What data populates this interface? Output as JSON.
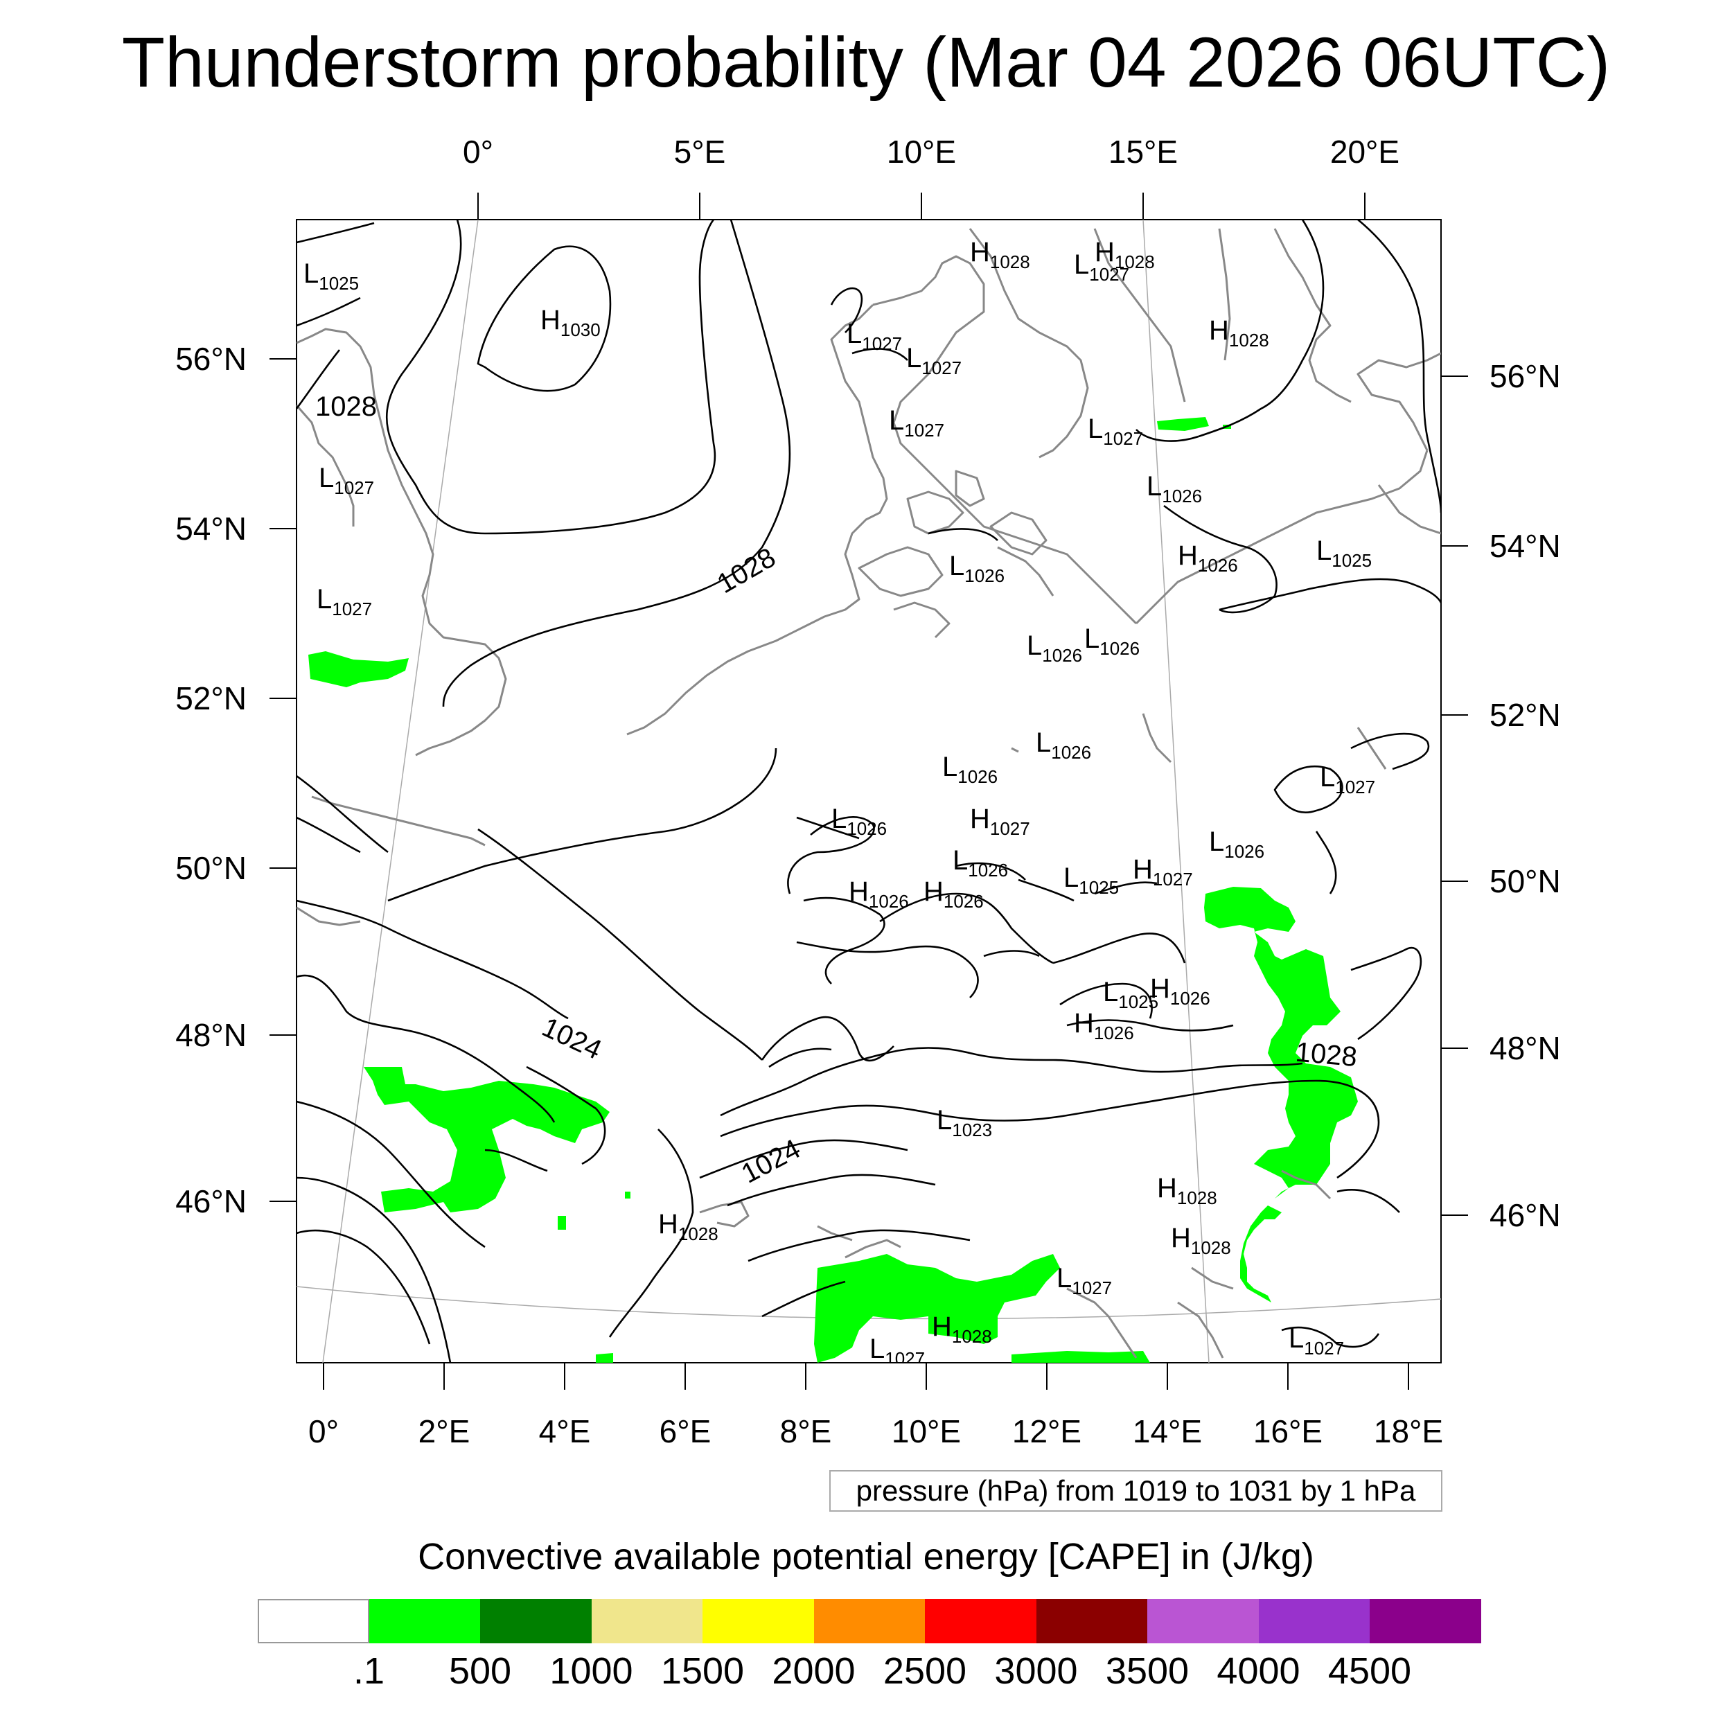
{
  "title": "Thunderstorm probability (Mar 04 2026 06UTC)",
  "map": {
    "lon_labels_top": [
      "0°",
      "5°E",
      "10°E",
      "15°E",
      "20°E"
    ],
    "lon_labels_bottom": [
      "0°",
      "2°E",
      "4°E",
      "6°E",
      "8°E",
      "10°E",
      "12°E",
      "14°E",
      "16°E",
      "18°E"
    ],
    "lat_labels_left": [
      "56°N",
      "54°N",
      "52°N",
      "50°N",
      "48°N",
      "46°N"
    ],
    "lat_labels_right": [
      "56°N",
      "54°N",
      "52°N",
      "50°N",
      "48°N",
      "46°N"
    ],
    "pressure_centers": [
      {
        "letter": "L",
        "value": "1025"
      },
      {
        "letter": "H",
        "value": "1030"
      },
      {
        "letter": "L",
        "value": "1027"
      },
      {
        "letter": "L",
        "value": "1027"
      },
      {
        "letter": "L",
        "value": "1027"
      },
      {
        "letter": "H",
        "value": "1028"
      },
      {
        "letter": "L",
        "value": "1027"
      },
      {
        "letter": "H",
        "value": "1028"
      },
      {
        "letter": "H",
        "value": "1028"
      },
      {
        "letter": "L",
        "value": "1027"
      },
      {
        "letter": "L",
        "value": "1027"
      },
      {
        "letter": "L",
        "value": "1027"
      },
      {
        "letter": "L",
        "value": "1026"
      },
      {
        "letter": "L",
        "value": "1025"
      },
      {
        "letter": "H",
        "value": "1026"
      },
      {
        "letter": "L",
        "value": "1026"
      },
      {
        "letter": "L",
        "value": "1026"
      },
      {
        "letter": "L",
        "value": "1026"
      },
      {
        "letter": "L",
        "value": "1026"
      },
      {
        "letter": "L",
        "value": "1026"
      },
      {
        "letter": "L",
        "value": "1027"
      },
      {
        "letter": "L",
        "value": "1026"
      },
      {
        "letter": "H",
        "value": "1027"
      },
      {
        "letter": "L",
        "value": "1026"
      },
      {
        "letter": "L",
        "value": "1026"
      },
      {
        "letter": "H",
        "value": "1026"
      },
      {
        "letter": "H",
        "value": "1026"
      },
      {
        "letter": "L",
        "value": "1025"
      },
      {
        "letter": "H",
        "value": "1027"
      },
      {
        "letter": "H",
        "value": "1026"
      },
      {
        "letter": "H",
        "value": "1026"
      },
      {
        "letter": "L",
        "value": "1025"
      },
      {
        "letter": "L",
        "value": "1023"
      },
      {
        "letter": "H",
        "value": "1028"
      },
      {
        "letter": "H",
        "value": "1028"
      },
      {
        "letter": "H",
        "value": "1028"
      },
      {
        "letter": "L",
        "value": "1027"
      },
      {
        "letter": "H",
        "value": "1028"
      },
      {
        "letter": "L",
        "value": "1027"
      },
      {
        "letter": "L",
        "value": "1027"
      }
    ],
    "contour_labels": [
      "1028",
      "1028",
      "1024",
      "1024",
      "1028"
    ]
  },
  "pressure_info": "pressure (hPa) from 1019 to 1031 by 1 hPa",
  "colorbar": {
    "title": "Convective available potential energy [CAPE] in (J/kg)",
    "colors": [
      "#ffffff",
      "#00ff00",
      "#008000",
      "#f0e68c",
      "#ffff00",
      "#ff8c00",
      "#ff0000",
      "#8b0000",
      "#ba55d3",
      "#9932cc",
      "#8b008b"
    ],
    "labels": [
      ".1",
      "500",
      "1000",
      "1500",
      "2000",
      "2500",
      "3000",
      "3500",
      "4000",
      "4500"
    ]
  }
}
